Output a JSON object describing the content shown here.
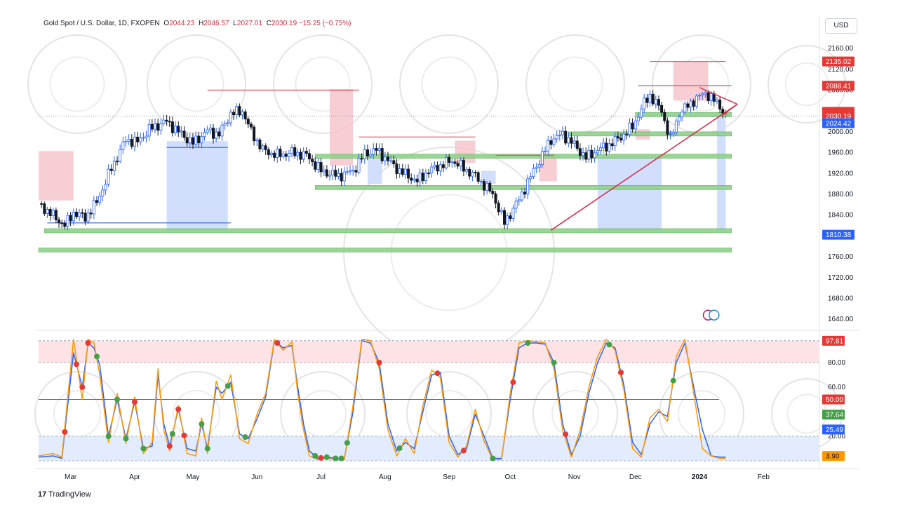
{
  "header": {
    "symbol": "Gold Spot / U.S. Dollar, 1D, FXOPEN",
    "open_label": "O",
    "open": "2044.23",
    "high_label": "H",
    "high": "2046.57",
    "low_label": "L",
    "low": "2027.01",
    "close_label": "C",
    "close": "2030.19",
    "change": "−15.25 (−0.75%)"
  },
  "currency_button": "USD",
  "branding": {
    "name": "TradingView",
    "logo_text": "17"
  },
  "colors": {
    "candle_up": "#2962ff",
    "candle_down": "#131722",
    "supply_zone": "#f7c6ce",
    "demand_zone": "#c9d9fb",
    "support_band": "#8fd18a",
    "trendline": "#d6304a",
    "stoch_k": "#2962ff",
    "stoch_d": "#ff9800",
    "overbought_fill": "#fde3e6",
    "oversold_fill": "#e3ecfd"
  },
  "chart_data": [
    {
      "type": "candlestick",
      "title": "Gold Spot / U.S. Dollar, 1D, FXOPEN",
      "x_tick_labels": [
        "Mar",
        "Apr",
        "May",
        "Jun",
        "Jul",
        "Aug",
        "Sep",
        "Oct",
        "Nov",
        "Dec",
        "2024",
        "Feb"
      ],
      "y_tick_labels": [
        1640,
        1680,
        1720,
        1760,
        1800,
        1840,
        1880,
        1920,
        1960,
        2000,
        2040,
        2080,
        2120,
        2160,
        2200
      ],
      "ylim": [
        1620,
        2210
      ],
      "grid": false,
      "price_path": {
        "x_index": [
          0,
          6,
          9,
          12,
          16,
          20,
          25,
          30,
          34,
          38,
          44,
          48,
          53,
          58,
          62,
          66,
          70,
          73,
          77,
          82,
          87,
          92,
          97,
          103,
          108,
          112,
          116,
          120,
          124,
          130,
          134,
          138,
          142,
          146,
          150,
          156,
          160,
          165,
          170,
          176,
          180,
          184,
          188,
          192,
          196,
          200,
          204,
          208,
          210,
          214,
          217,
          220,
          225,
          229,
          232,
          234,
          236
        ],
        "close": [
          1862,
          1834,
          1820,
          1845,
          1835,
          1865,
          1930,
          1985,
          1980,
          2005,
          2020,
          2000,
          1978,
          2002,
          1995,
          2035,
          2040,
          2000,
          1965,
          1955,
          1960,
          1955,
          1925,
          1915,
          1925,
          1958,
          1965,
          1945,
          1925,
          1905,
          1925,
          1935,
          1945,
          1930,
          1915,
          1880,
          1825,
          1870,
          1925,
          1985,
          1995,
          1975,
          1950,
          1965,
          1975,
          1990,
          2010,
          2055,
          2070,
          2040,
          1985,
          2035,
          2060,
          2075,
          2060,
          2050,
          2030.19
        ]
      },
      "price_labels": [
        {
          "label": "2135.02",
          "value": 2135.02,
          "kind": "resistance"
        },
        {
          "label": "2088.41",
          "value": 2088.41,
          "kind": "resistance"
        },
        {
          "label": "2030.19",
          "value": 2030.19,
          "kind": "last_price",
          "countdown": "13:51:43"
        },
        {
          "label": "2024.42",
          "value": 2024.42,
          "kind": "support"
        },
        {
          "label": "1810.38",
          "value": 1810.38,
          "kind": "support"
        }
      ],
      "support_bands": [
        2033,
        1996,
        1953,
        1893,
        1810,
        1773
      ],
      "trendline": {
        "from": [
          176,
          1811
        ],
        "to": [
          240,
          2053
        ]
      },
      "triangle": {
        "top": [
          227,
          2085
        ],
        "bottom": [
          235,
          2032
        ],
        "apex": [
          240,
          2053
        ]
      },
      "supply_zones": [
        {
          "x": [
            0,
            12
          ],
          "price": [
            1868,
            1963
          ]
        },
        {
          "x": [
            100,
            108
          ],
          "price": [
            1935,
            2082
          ]
        },
        {
          "x": [
            143,
            150
          ],
          "price": [
            1940,
            1983
          ]
        },
        {
          "x": [
            172,
            178
          ],
          "price": [
            1905,
            1958
          ]
        },
        {
          "x": [
            205,
            210
          ],
          "price": [
            1985,
            2005
          ]
        },
        {
          "x": [
            218,
            230
          ],
          "price": [
            2060,
            2135
          ]
        }
      ],
      "demand_zones": [
        {
          "x": [
            44,
            65
          ],
          "price": [
            1810,
            1982
          ]
        },
        {
          "x": [
            113,
            118
          ],
          "price": [
            1900,
            1948
          ]
        },
        {
          "x": [
            152,
            157
          ],
          "price": [
            1900,
            1925
          ]
        },
        {
          "x": [
            192,
            214
          ],
          "price": [
            1810,
            1952
          ]
        },
        {
          "x": [
            233,
            236
          ],
          "price": [
            1810,
            2030
          ]
        }
      ]
    },
    {
      "type": "line",
      "title": "",
      "y_tick_labels": [
        20,
        60,
        80
      ],
      "ylim": [
        0,
        100
      ],
      "levels": {
        "upper": 97.81,
        "middle": 50.0,
        "lower": 20
      },
      "value_labels": [
        {
          "label": "97.81",
          "value": 97.81,
          "color": "#e53935"
        },
        {
          "label": "50.00",
          "value": 50.0,
          "color": "#e53935"
        },
        {
          "label": "37.64",
          "value": 37.64,
          "color": "#43a047"
        },
        {
          "label": "25.49",
          "value": 25.49,
          "color": "#2962ff"
        },
        {
          "label": "3.90",
          "value": 3.9,
          "color": "#ff9800"
        }
      ],
      "series": [
        {
          "x_index": [
            0,
            5,
            8,
            12,
            15,
            17,
            19,
            21,
            24,
            27,
            30,
            33,
            36,
            39,
            41,
            43,
            45,
            48,
            51,
            54,
            56,
            58,
            61,
            63,
            66,
            69,
            72,
            75,
            78,
            81,
            84,
            87,
            89,
            91,
            93,
            96,
            99,
            102,
            105,
            108,
            111,
            114,
            117,
            120,
            123,
            126,
            129,
            132,
            135,
            138,
            141,
            144,
            147,
            150,
            153,
            156,
            159,
            162,
            165,
            168,
            171,
            174,
            177,
            180,
            183,
            186,
            189,
            192,
            195,
            198,
            201,
            204,
            207,
            210,
            213,
            216,
            219,
            222,
            225,
            228,
            231,
            234,
            236
          ],
          "values": [
            3,
            4,
            2,
            88,
            60,
            96,
            92,
            78,
            20,
            50,
            18,
            48,
            10,
            12,
            70,
            30,
            12,
            42,
            10,
            8,
            30,
            10,
            60,
            55,
            64,
            22,
            18,
            34,
            52,
            98,
            92,
            94,
            60,
            30,
            8,
            2,
            3,
            2,
            2,
            40,
            98,
            96,
            80,
            30,
            8,
            15,
            10,
            40,
            70,
            72,
            20,
            5,
            10,
            38,
            20,
            2,
            2,
            50,
            92,
            96,
            96,
            95,
            80,
            30,
            5,
            20,
            55,
            80,
            96,
            92,
            62,
            15,
            5,
            30,
            40,
            36,
            80,
            96,
            60,
            25.49,
            4,
            3,
            3
          ]
        },
        {
          "x_index": [
            0,
            5,
            8,
            12,
            15,
            17,
            19,
            21,
            24,
            27,
            30,
            33,
            36,
            39,
            41,
            43,
            45,
            48,
            51,
            54,
            56,
            58,
            61,
            63,
            66,
            69,
            72,
            75,
            78,
            81,
            84,
            87,
            89,
            91,
            93,
            96,
            99,
            102,
            105,
            108,
            111,
            114,
            117,
            120,
            123,
            126,
            129,
            132,
            135,
            138,
            141,
            144,
            147,
            150,
            153,
            156,
            159,
            162,
            165,
            168,
            171,
            174,
            177,
            180,
            183,
            186,
            189,
            192,
            195,
            198,
            201,
            204,
            207,
            210,
            213,
            216,
            219,
            222,
            225,
            228,
            231,
            234,
            236
          ],
          "values": [
            4,
            6,
            3,
            99,
            50,
            99,
            96,
            70,
            15,
            55,
            14,
            52,
            6,
            15,
            75,
            25,
            8,
            45,
            6,
            4,
            35,
            6,
            65,
            50,
            70,
            18,
            14,
            38,
            55,
            99,
            90,
            97,
            55,
            25,
            4,
            1,
            2,
            1,
            1,
            45,
            99,
            98,
            75,
            25,
            4,
            18,
            6,
            45,
            74,
            68,
            15,
            3,
            12,
            42,
            16,
            1,
            1,
            55,
            96,
            98,
            97,
            96,
            75,
            25,
            3,
            25,
            60,
            85,
            99,
            90,
            58,
            10,
            3,
            35,
            42,
            32,
            85,
            99,
            55,
            10,
            3.9,
            2,
            2
          ]
        }
      ],
      "signal_markers": {
        "overbought_x": [
          9,
          13,
          15,
          17,
          33,
          45,
          48,
          50,
          82,
          97,
          117,
          137,
          146,
          163,
          181,
          200
        ],
        "oversold_x": [
          20,
          24,
          27,
          30,
          36,
          46,
          56,
          58,
          65,
          71,
          95,
          99,
          102,
          104,
          106,
          124,
          156,
          168,
          177,
          196,
          218
        ]
      }
    }
  ]
}
